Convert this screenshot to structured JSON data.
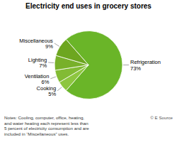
{
  "chart_data": {
    "type": "pie",
    "title": "Electricity end uses in grocery stores",
    "categories": [
      "Refrigeration",
      "Cooking",
      "Ventilation",
      "Lighting",
      "Miscellaneous"
    ],
    "values": [
      73,
      5,
      6,
      7,
      9
    ],
    "value_labels": [
      "73%",
      "5%",
      "6%",
      "7%",
      "9%"
    ],
    "colors": [
      "#6ab528",
      "#8dc63f",
      "#82bb34",
      "#78b02a",
      "#6da620"
    ],
    "data_labels": true,
    "annotations": [
      "Notes: Cooling, computer, office, heating,\nand water heating each represent less than\n5 percent of electricity consumption and are\nincluded in “Miscellaneous” uses.",
      "© E Source"
    ]
  }
}
